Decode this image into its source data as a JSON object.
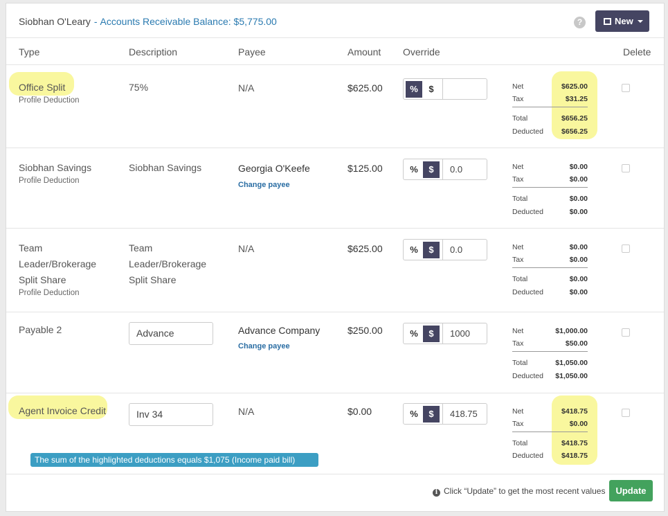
{
  "header": {
    "client_name": "Siobhan O'Leary",
    "separator": "-",
    "ar_balance": "Accounts Receivable Balance: $5,775.00",
    "help_icon": "?",
    "new_button": "New"
  },
  "columns": {
    "type": "Type",
    "description": "Description",
    "payee": "Payee",
    "amount": "Amount",
    "override": "Override",
    "delete": "Delete"
  },
  "labels": {
    "net": "Net",
    "tax": "Tax",
    "total": "Total",
    "deducted": "Deducted",
    "percent": "%",
    "dollar": "$",
    "change_payee": "Change payee"
  },
  "rows": [
    {
      "type_lines": [
        "Office Split"
      ],
      "type_sub": "Profile Deduction",
      "description": "75%",
      "payee": "N/A",
      "amount": "$625.00",
      "override_mode": "percent",
      "override_value": "",
      "net": "$625.00",
      "tax": "$31.25",
      "total": "$656.25",
      "deducted": "$656.25",
      "highlighted": true
    },
    {
      "type_lines": [
        "Siobhan Savings"
      ],
      "type_sub": "Profile Deduction",
      "description": "Siobhan Savings",
      "payee": "Georgia O'Keefe",
      "amount": "$125.00",
      "override_mode": "dollar",
      "override_value": "0.0",
      "net": "$0.00",
      "tax": "$0.00",
      "total": "$0.00",
      "deducted": "$0.00",
      "highlighted": false
    },
    {
      "type_lines": [
        "Team",
        "Leader/Brokerage",
        "Split Share"
      ],
      "type_sub": "Profile Deduction",
      "description_lines": [
        "Team",
        "Leader/Brokerage",
        "Split Share"
      ],
      "payee": "N/A",
      "amount": "$625.00",
      "override_mode": "dollar",
      "override_value": "0.0",
      "net": "$0.00",
      "tax": "$0.00",
      "total": "$0.00",
      "deducted": "$0.00",
      "highlighted": false
    },
    {
      "type_lines": [
        "Payable 2"
      ],
      "description_input": "Advance",
      "payee": "Advance Company",
      "amount": "$250.00",
      "override_mode": "dollar",
      "override_value": "1000",
      "net": "$1,000.00",
      "tax": "$50.00",
      "total": "$1,050.00",
      "deducted": "$1,050.00",
      "highlighted": false
    },
    {
      "type_lines": [
        "Agent Invoice Credit"
      ],
      "description_input": "Inv 34",
      "payee": "N/A",
      "amount": "$0.00",
      "override_mode": "dollar",
      "override_value": "418.75",
      "net": "$418.75",
      "tax": "$0.00",
      "total": "$418.75",
      "deducted": "$418.75",
      "highlighted": true
    }
  ],
  "note": "The sum of the highlighted deductions equals $1,075 (Income paid bill)",
  "footer": {
    "info_icon": "i",
    "message": "Click “Update” to get the most recent values",
    "update_button": "Update"
  },
  "colors": {
    "highlight": "#f9f79e",
    "link": "#2a7ab0",
    "toggle_active": "#454562",
    "update_button": "#43a25d",
    "note": "#3c9ec3"
  }
}
